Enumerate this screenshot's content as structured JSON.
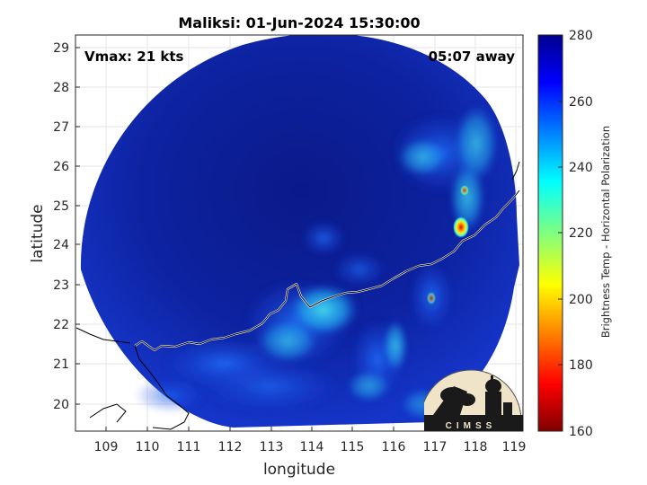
{
  "title": "Maliksi: 01-Jun-2024 15:30:00",
  "vmax_label": "Vmax: 21 kts",
  "time_label": "05:07 away",
  "xlabel": "longitude",
  "ylabel": "latitude",
  "xticks": [
    "109",
    "110",
    "111",
    "112",
    "113",
    "114",
    "115",
    "116",
    "117",
    "118",
    "119"
  ],
  "yticks": [
    "20",
    "21",
    "22",
    "23",
    "24",
    "25",
    "26",
    "27",
    "28",
    "29"
  ],
  "colorbar": {
    "label": "Brightness Temp - Horizontal Polarization",
    "ticks": [
      "160",
      "180",
      "200",
      "220",
      "240",
      "260",
      "280"
    ],
    "range": [
      160,
      280
    ],
    "colormap": "jet"
  },
  "logo_text": "CIMSS",
  "colors": {
    "background_dark": "#0a1a8c",
    "mid_blue": "#1a4de0",
    "cyan": "#33ccee",
    "hot_spot": "#dd2200",
    "coastline": "#ffffff"
  }
}
